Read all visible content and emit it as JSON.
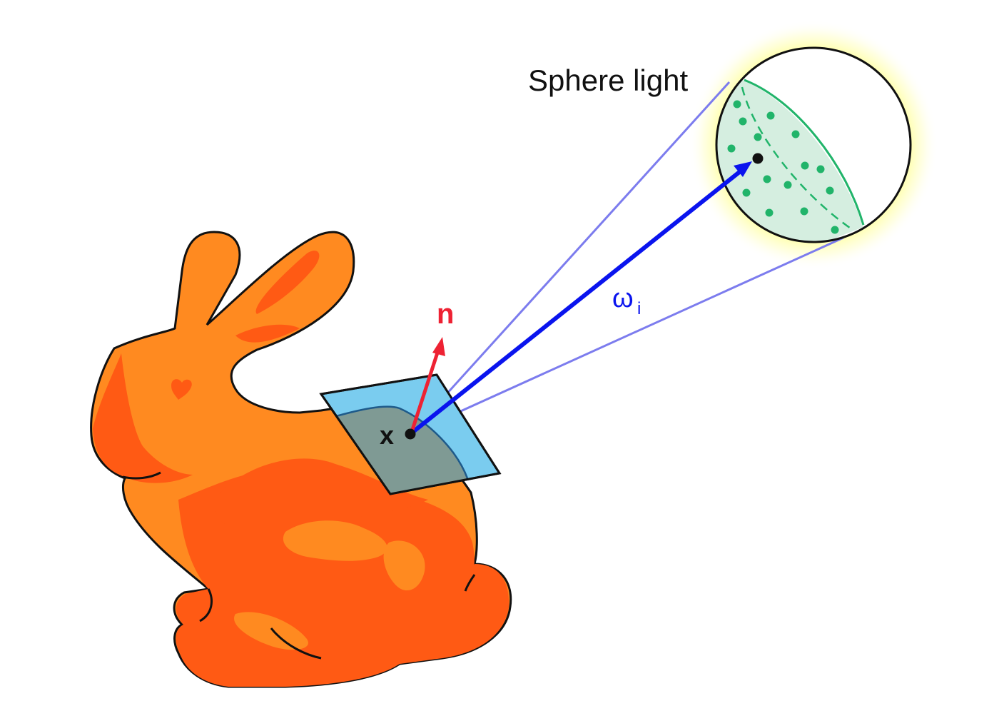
{
  "labels": {
    "light": "Sphere light",
    "normal": "n",
    "point": "x",
    "direction_main": "ω",
    "direction_sub": "i"
  },
  "colors": {
    "bunny_light": "#FF8A20",
    "bunny_dark": "#FF5A14",
    "tangent_plane": "#7ACCEF",
    "tangent_overlap": "#7F9A94",
    "normal_arrow": "#EE2233",
    "direction_arrow": "#0A14EE",
    "cone_lines": "#7C7CEE",
    "sphere_glow": "#FFFFC8",
    "sample_region": "#D5EEE0",
    "sample_points": "#21B46A"
  }
}
